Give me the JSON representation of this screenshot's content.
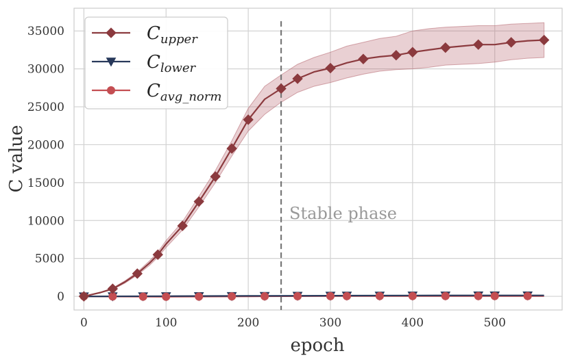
{
  "chart_data": {
    "type": "line",
    "title": "",
    "xlabel": "epoch",
    "ylabel": "C value",
    "xlim": [
      -12,
      582
    ],
    "ylim": [
      -1800,
      38000
    ],
    "xticks": [
      0,
      100,
      200,
      300,
      400,
      500
    ],
    "yticks": [
      0,
      5000,
      10000,
      15000,
      20000,
      25000,
      30000,
      35000
    ],
    "xtick_labels": [
      "0",
      "100",
      "200",
      "300",
      "400",
      "500"
    ],
    "ytick_labels": [
      "0",
      "5000",
      "10000",
      "15000",
      "20000",
      "25000",
      "30000",
      "35000"
    ],
    "grid": true,
    "legend_position": "top-left",
    "series": [
      {
        "name": "C_upper",
        "legend_base": "C",
        "legend_sub": "upper",
        "color": "#8b3a3e",
        "fill_color": "#b5656e",
        "marker": "diamond",
        "x": [
          0,
          20,
          35,
          50,
          65,
          80,
          90,
          100,
          120,
          140,
          160,
          180,
          200,
          220,
          240,
          260,
          280,
          300,
          320,
          340,
          360,
          380,
          400,
          420,
          440,
          460,
          480,
          500,
          520,
          540,
          560
        ],
        "y": [
          0,
          500,
          1000,
          1900,
          3000,
          4400,
          5500,
          6900,
          9300,
          12500,
          15800,
          19500,
          23300,
          26000,
          27400,
          28700,
          29600,
          30100,
          30800,
          31300,
          31600,
          31800,
          32200,
          32500,
          32800,
          33000,
          33200,
          33200,
          33500,
          33700,
          33800
        ],
        "lower": [
          0,
          450,
          900,
          1750,
          2800,
          4100,
          5150,
          6450,
          8750,
          11800,
          15000,
          18500,
          21800,
          24000,
          25600,
          26900,
          27700,
          28200,
          28800,
          29300,
          29700,
          29900,
          30000,
          30200,
          30500,
          30600,
          30700,
          30900,
          31200,
          31400,
          31500
        ],
        "upper": [
          0,
          550,
          1100,
          2050,
          3200,
          4700,
          5850,
          7350,
          9850,
          13200,
          16600,
          20500,
          24800,
          27700,
          29200,
          30600,
          31500,
          32200,
          33000,
          33500,
          34000,
          34300,
          35000,
          35300,
          35500,
          35600,
          35700,
          35700,
          35900,
          36000,
          36100
        ],
        "marker_x": [
          0,
          35,
          65,
          90,
          120,
          140,
          160,
          180,
          200,
          240,
          260,
          300,
          340,
          380,
          400,
          440,
          480,
          520,
          560
        ],
        "marker_y": [
          0,
          1000,
          3000,
          5500,
          9300,
          12500,
          15800,
          19500,
          23300,
          27400,
          28700,
          30100,
          31300,
          31800,
          32200,
          32800,
          33200,
          33500,
          33800
        ]
      },
      {
        "name": "C_lower",
        "legend_base": "C",
        "legend_sub": "lower",
        "color": "#27385a",
        "marker": "triangle-down",
        "x": [
          0,
          100,
          200,
          300,
          400,
          500,
          560
        ],
        "y": [
          0,
          20,
          60,
          90,
          110,
          120,
          125
        ],
        "marker_x": [
          0,
          35,
          72,
          100,
          140,
          180,
          220,
          260,
          300,
          320,
          360,
          400,
          440,
          480,
          500,
          540
        ],
        "marker_y": [
          0,
          10,
          15,
          20,
          30,
          45,
          60,
          75,
          90,
          95,
          100,
          110,
          115,
          118,
          120,
          123
        ]
      },
      {
        "name": "C_avg_norm",
        "legend_base": "C",
        "legend_sub": "avg_norm",
        "color": "#c44e52",
        "marker": "circle",
        "x": [
          0,
          100,
          200,
          300,
          400,
          500,
          560
        ],
        "y": [
          0,
          -50,
          0,
          30,
          40,
          40,
          40
        ],
        "marker_x": [
          0,
          35,
          72,
          100,
          140,
          180,
          220,
          260,
          300,
          320,
          360,
          400,
          440,
          480,
          500,
          540
        ],
        "marker_y": [
          0,
          -20,
          -40,
          -50,
          -30,
          -10,
          0,
          20,
          30,
          30,
          35,
          40,
          40,
          40,
          40,
          40
        ]
      }
    ],
    "annotations": [
      {
        "type": "vline",
        "x": 240,
        "y_from": -1800,
        "y_to": 36300,
        "color": "#777777",
        "style": "dashed"
      },
      {
        "type": "text",
        "text": "Stable phase",
        "x": 250,
        "y": 10200,
        "color": "#999999"
      }
    ]
  }
}
